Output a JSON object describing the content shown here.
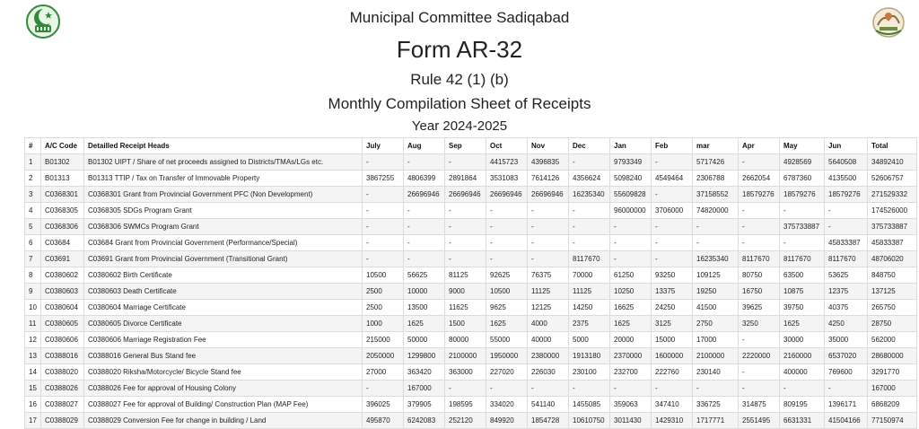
{
  "header": {
    "org": "Municipal Committee Sadiqabad",
    "form": "Form AR-32",
    "rule": "Rule 42 (1) (b)",
    "subtitle": "Monthly Compilation Sheet of Receipts",
    "year": "Year 2024-2025"
  },
  "logos": {
    "left": "punjab-government-logo",
    "right": "municipal-committee-logo"
  },
  "table": {
    "columns": [
      "#",
      "A/C Code",
      "Detailled Receipt Heads",
      "July",
      "Aug",
      "Sep",
      "Oct",
      "Nov",
      "Dec",
      "Jan",
      "Feb",
      "mar",
      "Apr",
      "May",
      "Jun",
      "Total"
    ],
    "rows": [
      [
        "1",
        "B01302",
        "B01302 UIPT / Share of net proceeds assigned to Districts/TMAs/LGs etc.",
        "-",
        "-",
        "-",
        "4415723",
        "4396835",
        "-",
        "9793349",
        "-",
        "5717426",
        "-",
        "4928569",
        "5640508",
        "34892410"
      ],
      [
        "2",
        "B01313",
        "B01313 TTIP / Tax on Transfer of Immovable Property",
        "3867255",
        "4806399",
        "2891864",
        "3531083",
        "7614126",
        "4356624",
        "5098240",
        "4549464",
        "2306788",
        "2662054",
        "6787360",
        "4135500",
        "52606757"
      ],
      [
        "3",
        "C0368301",
        "C0368301 Grant from Provincial Government PFC (Non Development)",
        "-",
        "26696946",
        "26696946",
        "26696946",
        "26696946",
        "16235340",
        "55609828",
        "-",
        "37158552",
        "18579276",
        "18579276",
        "18579276",
        "271529332"
      ],
      [
        "4",
        "C0368305",
        "C0368305 SDGs Program Grant",
        "-",
        "-",
        "-",
        "-",
        "-",
        "-",
        "96000000",
        "3706000",
        "74820000",
        "-",
        "-",
        "-",
        "174526000"
      ],
      [
        "5",
        "C0368306",
        "C0368306 SWMCs Program Grant",
        "-",
        "-",
        "-",
        "-",
        "-",
        "-",
        "-",
        "-",
        "-",
        "-",
        "375733887",
        "-",
        "375733887"
      ],
      [
        "6",
        "C03684",
        "C03684 Grant from Provincial Government (Performance/Special)",
        "-",
        "-",
        "-",
        "-",
        "-",
        "-",
        "-",
        "-",
        "-",
        "-",
        "-",
        "45833387",
        "45833387"
      ],
      [
        "7",
        "C03691",
        "C03691 Grant from Provincial Government (Transitional Grant)",
        "-",
        "-",
        "-",
        "-",
        "-",
        "8117670",
        "-",
        "-",
        "16235340",
        "8117670",
        "8117670",
        "8117670",
        "48706020"
      ],
      [
        "8",
        "C0380602",
        "C0380602 Birth Certificate",
        "10500",
        "56625",
        "81125",
        "92625",
        "76375",
        "70000",
        "61250",
        "93250",
        "109125",
        "80750",
        "63500",
        "53625",
        "848750"
      ],
      [
        "9",
        "C0380603",
        "C0380603 Death Certificate",
        "2500",
        "10000",
        "9000",
        "10500",
        "11125",
        "11125",
        "10250",
        "13375",
        "19250",
        "16750",
        "10875",
        "12375",
        "137125"
      ],
      [
        "10",
        "C0380604",
        "C0380604 Marriage Certificate",
        "2500",
        "13500",
        "11625",
        "9625",
        "12125",
        "14250",
        "16625",
        "24250",
        "41500",
        "39625",
        "39750",
        "40375",
        "265750"
      ],
      [
        "11",
        "C0380605",
        "C0380605 Divorce Certificate",
        "1000",
        "1625",
        "1500",
        "1625",
        "4000",
        "2375",
        "1625",
        "3125",
        "2750",
        "3250",
        "1625",
        "4250",
        "28750"
      ],
      [
        "12",
        "C0380606",
        "C0380606 Marriage Registration Fee",
        "215000",
        "50000",
        "80000",
        "55000",
        "40000",
        "5000",
        "20000",
        "15000",
        "17000",
        "-",
        "30000",
        "35000",
        "562000"
      ],
      [
        "13",
        "C0388016",
        "C0388016 General Bus Stand fee",
        "2050000",
        "1299800",
        "2100000",
        "1950000",
        "2380000",
        "1913180",
        "2370000",
        "1600000",
        "2100000",
        "2220000",
        "2160000",
        "6537020",
        "28680000"
      ],
      [
        "14",
        "C0388020",
        "C0388020 Riksha/Motorcycle/ Bicycle Stand fee",
        "27000",
        "363420",
        "363000",
        "227020",
        "226030",
        "230100",
        "232700",
        "222760",
        "230140",
        "-",
        "400000",
        "769600",
        "3291770"
      ],
      [
        "15",
        "C0388026",
        "C0388026 Fee for approval of Housing Colony",
        "-",
        "167000",
        "-",
        "-",
        "-",
        "-",
        "-",
        "-",
        "-",
        "-",
        "-",
        "-",
        "167000"
      ],
      [
        "16",
        "C0388027",
        "C0388027 Fee for approval of Building/ Construction Plan (MAP Fee)",
        "396025",
        "379905",
        "198595",
        "334020",
        "541140",
        "1455085",
        "359063",
        "347410",
        "336725",
        "314875",
        "809195",
        "1396171",
        "6868209"
      ],
      [
        "17",
        "C0388029",
        "C0388029 Conversion Fee for change in building / Land",
        "495870",
        "6242083",
        "252120",
        "849920",
        "1854728",
        "10610750",
        "3011430",
        "1429310",
        "1717771",
        "2551495",
        "6631331",
        "41504166",
        "77150974"
      ]
    ]
  }
}
